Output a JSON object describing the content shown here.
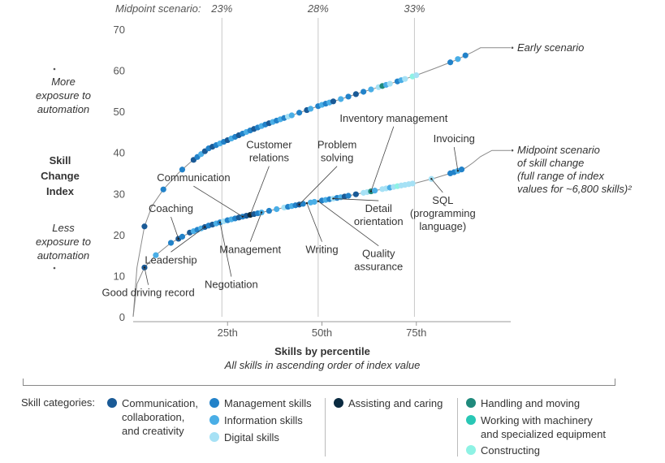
{
  "chart_data": {
    "type": "scatter",
    "header_label": "Midpoint scenario:",
    "header_ticks": [
      {
        "x": 23.5,
        "label": "23%"
      },
      {
        "x": 49,
        "label": "28%"
      },
      {
        "x": 74.5,
        "label": "33%"
      }
    ],
    "y_axis": {
      "min": 0,
      "max": 70,
      "ticks": [
        0,
        10,
        20,
        30,
        40,
        50,
        60,
        70
      ]
    },
    "x_axis": {
      "min": 0,
      "max": 100,
      "ticks": [
        {
          "x": 25,
          "label": "25th"
        },
        {
          "x": 50,
          "label": "50th"
        },
        {
          "x": 75,
          "label": "75th"
        }
      ]
    },
    "y_label": {
      "title": "Skill\nChange\nIndex",
      "top": "More\nexposure to\nautomation",
      "bottom": "Less\nexposure to\nautomation"
    },
    "x_label": {
      "title": "Skills by percentile",
      "subtitle": "All skills in ascending order of index value"
    },
    "series": [
      {
        "name": "Early scenario",
        "curve": [
          [
            0,
            0
          ],
          [
            1,
            12
          ],
          [
            3,
            22
          ],
          [
            5,
            27
          ],
          [
            8,
            31
          ],
          [
            12,
            35
          ],
          [
            15,
            37.5
          ],
          [
            20,
            41
          ],
          [
            25,
            43
          ],
          [
            30,
            45
          ],
          [
            35,
            46.8
          ],
          [
            40,
            48.4
          ],
          [
            45,
            50
          ],
          [
            50,
            51.6
          ],
          [
            55,
            53
          ],
          [
            60,
            54.5
          ],
          [
            65,
            55.9
          ],
          [
            70,
            57.3
          ],
          [
            75,
            58.8
          ],
          [
            80,
            60.5
          ],
          [
            85,
            62.3
          ],
          [
            90,
            64.5
          ],
          [
            92,
            65.5
          ],
          [
            100,
            65.5
          ]
        ],
        "points": [
          {
            "x": 3,
            "c": "comm"
          },
          {
            "x": 8,
            "c": "mgmt"
          },
          {
            "x": 13,
            "c": "mgmt"
          },
          {
            "x": 16,
            "c": "comm"
          },
          {
            "x": 17,
            "c": "mgmt"
          },
          {
            "x": 18,
            "c": "info"
          },
          {
            "x": 19,
            "c": "comm"
          },
          {
            "x": 20,
            "c": "mgmt"
          },
          {
            "x": 21,
            "c": "comm"
          },
          {
            "x": 22,
            "c": "mgmt"
          },
          {
            "x": 23,
            "c": "info"
          },
          {
            "x": 24,
            "c": "mgmt"
          },
          {
            "x": 25,
            "c": "comm"
          },
          {
            "x": 26,
            "c": "info"
          },
          {
            "x": 27,
            "c": "mgmt"
          },
          {
            "x": 28,
            "c": "comm"
          },
          {
            "x": 29,
            "c": "mgmt"
          },
          {
            "x": 30,
            "c": "info"
          },
          {
            "x": 31,
            "c": "mgmt"
          },
          {
            "x": 32,
            "c": "comm"
          },
          {
            "x": 33,
            "c": "mgmt"
          },
          {
            "x": 34,
            "c": "info"
          },
          {
            "x": 35,
            "c": "mgmt"
          },
          {
            "x": 36,
            "c": "comm"
          },
          {
            "x": 37,
            "c": "info"
          },
          {
            "x": 38,
            "c": "mgmt"
          },
          {
            "x": 39,
            "c": "info"
          },
          {
            "x": 40,
            "c": "mgmt"
          },
          {
            "x": 41,
            "c": "digital"
          },
          {
            "x": 42,
            "c": "info"
          },
          {
            "x": 44,
            "c": "mgmt"
          },
          {
            "x": 46,
            "c": "comm"
          },
          {
            "x": 47,
            "c": "info"
          },
          {
            "x": 49,
            "c": "mgmt"
          },
          {
            "x": 50,
            "c": "info"
          },
          {
            "x": 51,
            "c": "mgmt"
          },
          {
            "x": 52,
            "c": "info"
          },
          {
            "x": 53,
            "c": "comm"
          },
          {
            "x": 55,
            "c": "info"
          },
          {
            "x": 57,
            "c": "mgmt"
          },
          {
            "x": 59,
            "c": "comm"
          },
          {
            "x": 61,
            "c": "mgmt"
          },
          {
            "x": 63,
            "c": "info"
          },
          {
            "x": 65,
            "c": "digital"
          },
          {
            "x": 66,
            "c": "handling"
          },
          {
            "x": 67,
            "c": "info"
          },
          {
            "x": 68,
            "c": "digital"
          },
          {
            "x": 70,
            "c": "mgmt"
          },
          {
            "x": 71,
            "c": "info"
          },
          {
            "x": 72,
            "c": "digital"
          },
          {
            "x": 74,
            "c": "construct"
          },
          {
            "x": 75,
            "c": "digital"
          },
          {
            "x": 84,
            "c": "mgmt"
          },
          {
            "x": 86,
            "c": "info"
          },
          {
            "x": 88,
            "c": "mgmt"
          }
        ]
      },
      {
        "name": "Midpoint scenario\nof skill change\n(full range of index\nvalues for ~6,800 skills)²",
        "curve": [
          [
            0,
            0
          ],
          [
            1,
            8
          ],
          [
            3,
            12
          ],
          [
            6,
            15
          ],
          [
            10,
            18
          ],
          [
            15,
            20.5
          ],
          [
            20,
            22.2
          ],
          [
            25,
            23.5
          ],
          [
            30,
            24.6
          ],
          [
            35,
            25.6
          ],
          [
            40,
            26.6
          ],
          [
            45,
            27.5
          ],
          [
            50,
            28.3
          ],
          [
            55,
            29.1
          ],
          [
            60,
            30
          ],
          [
            65,
            30.9
          ],
          [
            70,
            31.8
          ],
          [
            75,
            32.6
          ],
          [
            80,
            33.8
          ],
          [
            85,
            35.2
          ],
          [
            88,
            36.2
          ],
          [
            90,
            37.5
          ],
          [
            92,
            39
          ],
          [
            95,
            40.5
          ],
          [
            100,
            40.5
          ]
        ],
        "points": [
          {
            "x": 3,
            "c": "comm"
          },
          {
            "x": 6,
            "c": "info"
          },
          {
            "x": 10,
            "c": "mgmt"
          },
          {
            "x": 12,
            "c": "comm"
          },
          {
            "x": 13,
            "c": "mgmt"
          },
          {
            "x": 15,
            "c": "comm"
          },
          {
            "x": 16,
            "c": "info"
          },
          {
            "x": 17,
            "c": "mgmt"
          },
          {
            "x": 18,
            "c": "info"
          },
          {
            "x": 19,
            "c": "comm"
          },
          {
            "x": 20,
            "c": "mgmt"
          },
          {
            "x": 21,
            "c": "comm"
          },
          {
            "x": 22,
            "c": "info"
          },
          {
            "x": 23,
            "c": "mgmt"
          },
          {
            "x": 24,
            "c": "digital"
          },
          {
            "x": 25,
            "c": "mgmt"
          },
          {
            "x": 26,
            "c": "info"
          },
          {
            "x": 27,
            "c": "mgmt"
          },
          {
            "x": 28,
            "c": "comm"
          },
          {
            "x": 29,
            "c": "mgmt"
          },
          {
            "x": 30,
            "c": "comm"
          },
          {
            "x": 31,
            "c": "assist"
          },
          {
            "x": 32,
            "c": "comm"
          },
          {
            "x": 33,
            "c": "mgmt"
          },
          {
            "x": 34,
            "c": "info"
          },
          {
            "x": 36,
            "c": "mgmt"
          },
          {
            "x": 38,
            "c": "info"
          },
          {
            "x": 40,
            "c": "digital"
          },
          {
            "x": 41,
            "c": "mgmt"
          },
          {
            "x": 42,
            "c": "info"
          },
          {
            "x": 43,
            "c": "mgmt"
          },
          {
            "x": 44,
            "c": "comm"
          },
          {
            "x": 45,
            "c": "mgmt"
          },
          {
            "x": 47,
            "c": "info"
          },
          {
            "x": 48,
            "c": "info"
          },
          {
            "x": 50,
            "c": "mgmt"
          },
          {
            "x": 51,
            "c": "info"
          },
          {
            "x": 52,
            "c": "mgmt"
          },
          {
            "x": 53,
            "c": "digital"
          },
          {
            "x": 54,
            "c": "mgmt"
          },
          {
            "x": 55,
            "c": "info"
          },
          {
            "x": 56,
            "c": "comm"
          },
          {
            "x": 57,
            "c": "mgmt"
          },
          {
            "x": 59,
            "c": "comm"
          },
          {
            "x": 61,
            "c": "digital"
          },
          {
            "x": 62,
            "c": "digital"
          },
          {
            "x": 63,
            "c": "handling"
          },
          {
            "x": 64,
            "c": "info"
          },
          {
            "x": 66,
            "c": "digital"
          },
          {
            "x": 67,
            "c": "digital"
          },
          {
            "x": 68,
            "c": "info"
          },
          {
            "x": 69,
            "c": "digital"
          },
          {
            "x": 70,
            "c": "construct"
          },
          {
            "x": 71,
            "c": "digital"
          },
          {
            "x": 72,
            "c": "digital"
          },
          {
            "x": 73,
            "c": "digital"
          },
          {
            "x": 74,
            "c": "digital"
          },
          {
            "x": 79,
            "c": "digital"
          },
          {
            "x": 84,
            "c": "mgmt"
          },
          {
            "x": 85,
            "c": "mgmt"
          },
          {
            "x": 86,
            "c": "info"
          },
          {
            "x": 87,
            "c": "mgmt"
          }
        ]
      }
    ],
    "annotations": [
      {
        "text": "Good driving record",
        "px": 3,
        "series": 1,
        "tx": 4,
        "ty": 5
      },
      {
        "text": "Coaching",
        "px": 12,
        "series": 1,
        "tx": 10,
        "ty": 25.5
      },
      {
        "text": "Leadership",
        "px": 19,
        "series": 1,
        "tx": 10,
        "ty": 13
      },
      {
        "text": "Negotiation",
        "px": 23,
        "series": 1,
        "tx": 26,
        "ty": 7
      },
      {
        "text": "Communication",
        "px": 29,
        "series": 1,
        "tx": 16,
        "ty": 33
      },
      {
        "text": "Customer\nrelations",
        "px": 31,
        "series": 1,
        "tx": 36,
        "ty": 41
      },
      {
        "text": "Management",
        "px": 34,
        "series": 1,
        "tx": 31,
        "ty": 15.5
      },
      {
        "text": "Problem\nsolving",
        "px": 44,
        "series": 1,
        "tx": 54,
        "ty": 41
      },
      {
        "text": "Writing",
        "px": 46,
        "series": 1,
        "tx": 50,
        "ty": 15.5
      },
      {
        "text": "Quality\nassurance",
        "px": 49,
        "series": 1,
        "tx": 65,
        "ty": 14.5
      },
      {
        "text": "Detail\norientation",
        "px": 53,
        "series": 1,
        "tx": 65,
        "ty": 25.5
      },
      {
        "text": "Inventory management",
        "px": 63,
        "series": 1,
        "tx": 69,
        "ty": 47.5
      },
      {
        "text": "Invoicing",
        "px": 86,
        "series": 1,
        "tx": 85,
        "ty": 42.5
      },
      {
        "text": "SQL\n(programming\nlanguage)",
        "px": 79,
        "series": 1,
        "tx": 82,
        "ty": 27.5
      }
    ],
    "legend_title": "Skill categories:",
    "categories": [
      {
        "key": "comm",
        "label": "Communication,\ncollaboration,\nand creativity",
        "color": "#1a5a96"
      },
      {
        "key": "mgmt",
        "label": "Management skills",
        "color": "#2282c9"
      },
      {
        "key": "info",
        "label": "Information skills",
        "color": "#4aaee6"
      },
      {
        "key": "digital",
        "label": "Digital skills",
        "color": "#a6e1f5"
      },
      {
        "key": "assist",
        "label": "Assisting and caring",
        "color": "#0a2a40"
      },
      {
        "key": "handling",
        "label": "Handling and moving",
        "color": "#1f8a7c"
      },
      {
        "key": "machinery",
        "label": "Working with machinery\nand specialized equipment",
        "color": "#29c7b5"
      },
      {
        "key": "construct",
        "label": "Constructing",
        "color": "#8ef2e4"
      }
    ]
  }
}
